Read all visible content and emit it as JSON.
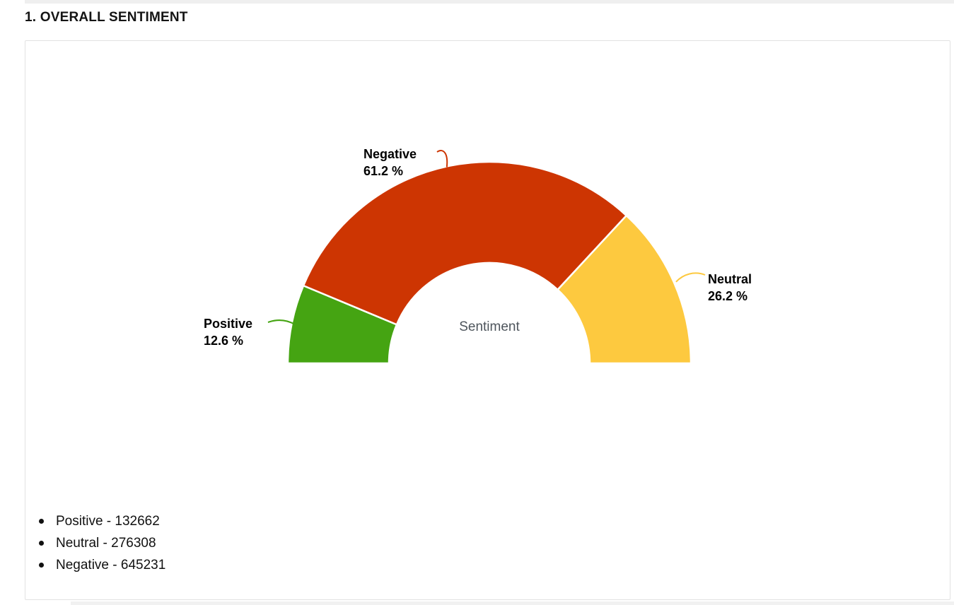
{
  "page": {
    "section_title": "1. OVERALL SENTIMENT"
  },
  "chart_data": {
    "type": "pie",
    "variant": "semi-circle-donut-gauge",
    "title": "Sentiment",
    "start_angle_deg": 180,
    "end_angle_deg": 0,
    "legend_position": "none",
    "segments": [
      {
        "label": "Positive",
        "percent": 12.6,
        "percent_label": "12.6 %",
        "value": 132662,
        "color": "#45a412"
      },
      {
        "label": "Negative",
        "percent": 61.2,
        "percent_label": "61.2 %",
        "value": 645231,
        "color": "#cd3502"
      },
      {
        "label": "Neutral",
        "percent": 26.2,
        "percent_label": "26.2 %",
        "value": 276308,
        "color": "#fdc93f"
      }
    ]
  },
  "legend_list": {
    "items": [
      {
        "text": "Positive - 132662"
      },
      {
        "text": "Neutral - 276308"
      },
      {
        "text": "Negative - 645231"
      }
    ]
  }
}
